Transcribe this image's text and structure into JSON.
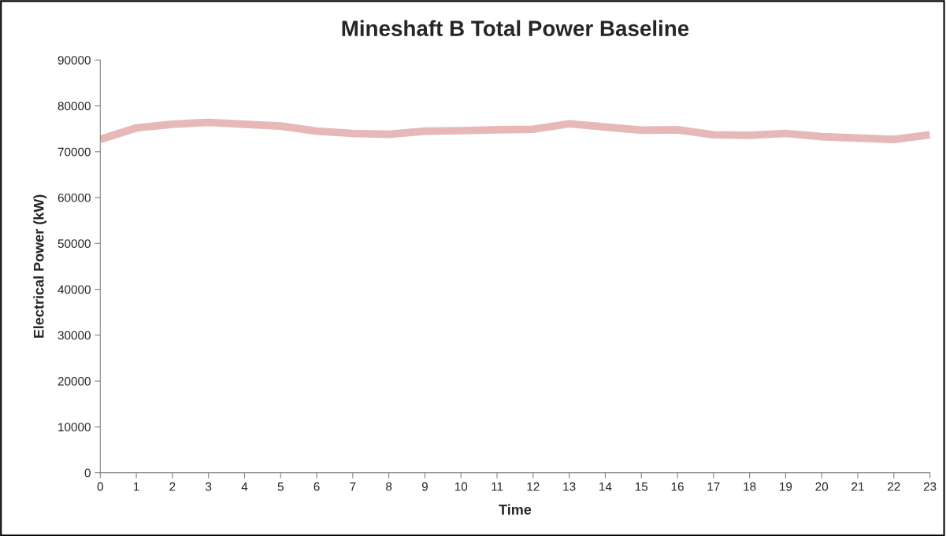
{
  "chart_data": {
    "type": "line",
    "title": "Mineshaft B Total Power Baseline",
    "xlabel": "Time",
    "ylabel": "Electrical Power (kW)",
    "x": [
      0,
      1,
      2,
      3,
      4,
      5,
      6,
      7,
      8,
      9,
      10,
      11,
      12,
      13,
      14,
      15,
      16,
      17,
      18,
      19,
      20,
      21,
      22,
      23
    ],
    "series": [
      {
        "color": "#e6b9b8",
        "values": [
          72700,
          75200,
          76000,
          76400,
          76000,
          75600,
          74500,
          74000,
          73800,
          74500,
          74600,
          74800,
          74900,
          76100,
          75400,
          74700,
          74800,
          73700,
          73600,
          74000,
          73300,
          73000,
          72700,
          73700
        ]
      }
    ],
    "xlim": [
      0,
      23
    ],
    "xticks": [
      0,
      1,
      2,
      3,
      4,
      5,
      6,
      7,
      8,
      9,
      10,
      11,
      12,
      13,
      14,
      15,
      16,
      17,
      18,
      19,
      20,
      21,
      22,
      23
    ],
    "ylim": [
      0,
      90000
    ],
    "yticks": [
      0,
      10000,
      20000,
      30000,
      40000,
      50000,
      60000,
      70000,
      80000,
      90000
    ],
    "grid": false,
    "marker": "none",
    "line_style": "solid"
  }
}
